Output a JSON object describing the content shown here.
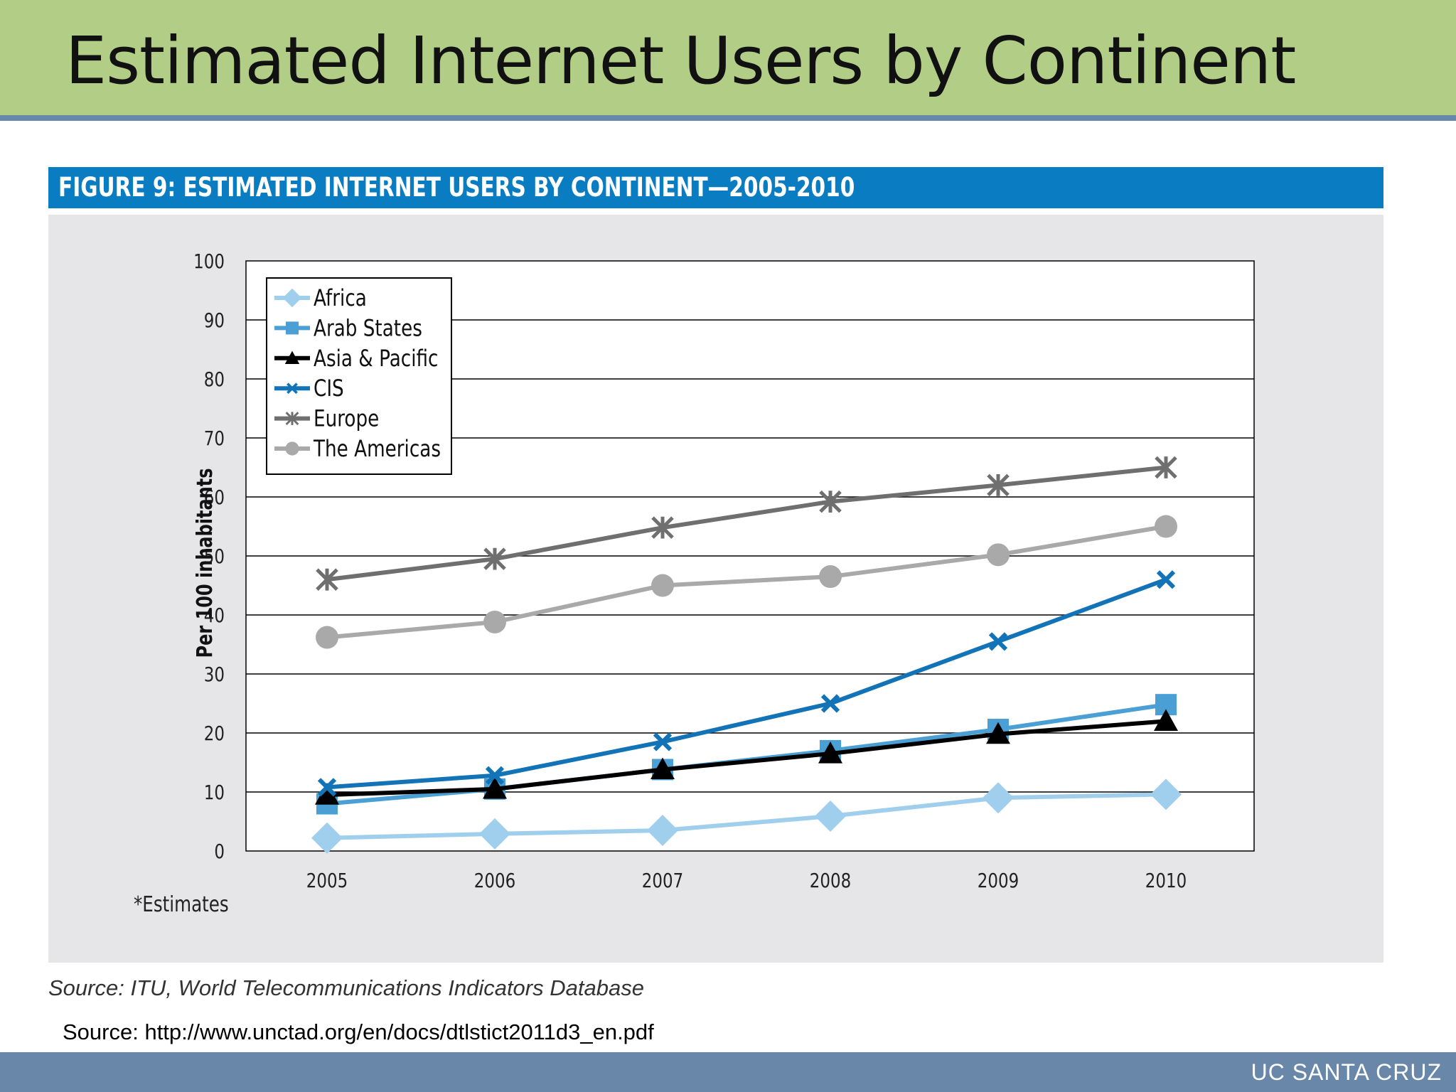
{
  "slide": {
    "title": "Estimated Internet Users by Continent",
    "footer": "UC SANTA CRUZ",
    "url_source": "Source: http://www.unctad.org/en/docs/dtlstict2011d3_en.pdf"
  },
  "figure": {
    "header": "FIGURE 9: ESTIMATED INTERNET USERS BY CONTINENT—2005-2010",
    "source": "Source: ITU, World Telecommunications Indicators Database",
    "note": "*Estimates"
  },
  "chart_data": {
    "type": "line",
    "title": "FIGURE 9: ESTIMATED INTERNET USERS BY CONTINENT—2005-2010",
    "xlabel": "",
    "ylabel": "Per 100 inhabitants",
    "x": [
      "2005",
      "2006",
      "2007",
      "2008",
      "2009",
      "2010"
    ],
    "ylim": [
      0,
      100
    ],
    "yticks": [
      0,
      10,
      20,
      30,
      40,
      50,
      60,
      70,
      80,
      90,
      100
    ],
    "grid": true,
    "legend_position": "top-left",
    "series": [
      {
        "name": "Africa",
        "values": [
          2.2,
          2.9,
          3.5,
          5.9,
          9.0,
          9.6
        ],
        "color": "#9fcfed",
        "marker": "diamond"
      },
      {
        "name": "Arab States",
        "values": [
          8.0,
          10.5,
          13.8,
          17.0,
          20.6,
          24.8
        ],
        "color": "#4a9fd5",
        "marker": "square"
      },
      {
        "name": "Asia & Pacific",
        "values": [
          9.5,
          10.5,
          13.8,
          16.5,
          19.8,
          22.0
        ],
        "color": "#000000",
        "marker": "triangle"
      },
      {
        "name": "CIS",
        "values": [
          10.8,
          12.8,
          18.5,
          25.0,
          35.5,
          46.0
        ],
        "color": "#1273b7",
        "marker": "x"
      },
      {
        "name": "Europe",
        "values": [
          46.0,
          49.5,
          54.8,
          59.2,
          62.0,
          65.0
        ],
        "color": "#6f6f70",
        "marker": "asterisk"
      },
      {
        "name": "The Americas",
        "values": [
          36.2,
          38.8,
          45.0,
          46.5,
          50.2,
          55.0
        ],
        "color": "#a9a9aa",
        "marker": "circle"
      }
    ]
  }
}
